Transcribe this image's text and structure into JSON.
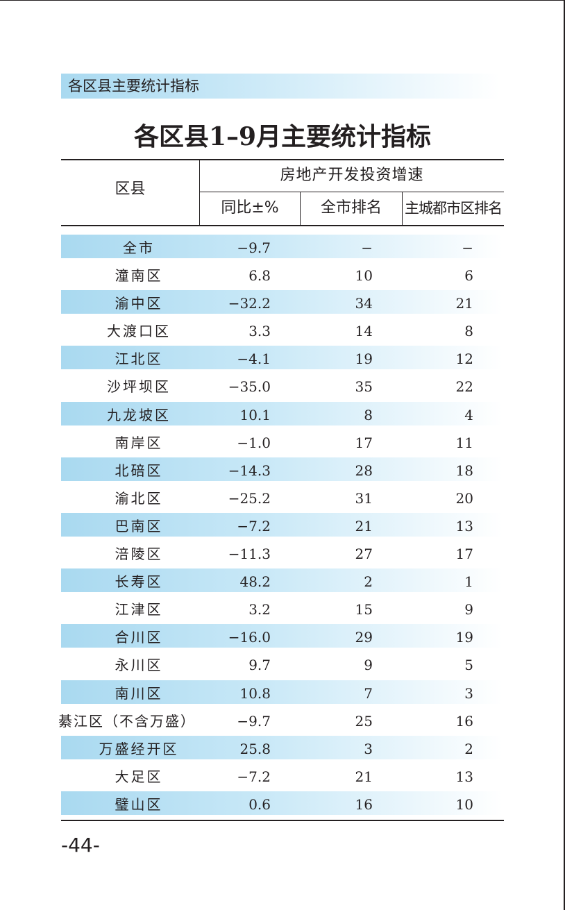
{
  "section": {
    "label": "各区县主要统计指标"
  },
  "title": "各区县1–9月主要统计指标",
  "table": {
    "col_county": "区县",
    "col_group": "房地产开发投资增速",
    "col_yoy": "同比±%",
    "col_city_rank": "全市排名",
    "col_urban_rank": "主城都市区排名",
    "rows": [
      {
        "name": "全市",
        "yoy": "−9.7",
        "city_rank": "−",
        "urban_rank": "−",
        "shaded": true
      },
      {
        "name": "潼南区",
        "yoy": "6.8",
        "city_rank": "10",
        "urban_rank": "6",
        "shaded": false
      },
      {
        "name": "渝中区",
        "yoy": "−32.2",
        "city_rank": "34",
        "urban_rank": "21",
        "shaded": true
      },
      {
        "name": "大渡口区",
        "yoy": "3.3",
        "city_rank": "14",
        "urban_rank": "8",
        "shaded": false
      },
      {
        "name": "江北区",
        "yoy": "−4.1",
        "city_rank": "19",
        "urban_rank": "12",
        "shaded": true
      },
      {
        "name": "沙坪坝区",
        "yoy": "−35.0",
        "city_rank": "35",
        "urban_rank": "22",
        "shaded": false
      },
      {
        "name": "九龙坡区",
        "yoy": "10.1",
        "city_rank": "8",
        "urban_rank": "4",
        "shaded": true
      },
      {
        "name": "南岸区",
        "yoy": "−1.0",
        "city_rank": "17",
        "urban_rank": "11",
        "shaded": false
      },
      {
        "name": "北碚区",
        "yoy": "−14.3",
        "city_rank": "28",
        "urban_rank": "18",
        "shaded": true
      },
      {
        "name": "渝北区",
        "yoy": "−25.2",
        "city_rank": "31",
        "urban_rank": "20",
        "shaded": false
      },
      {
        "name": "巴南区",
        "yoy": "−7.2",
        "city_rank": "21",
        "urban_rank": "13",
        "shaded": true
      },
      {
        "name": "涪陵区",
        "yoy": "−11.3",
        "city_rank": "27",
        "urban_rank": "17",
        "shaded": false
      },
      {
        "name": "长寿区",
        "yoy": "48.2",
        "city_rank": "2",
        "urban_rank": "1",
        "shaded": true
      },
      {
        "name": "江津区",
        "yoy": "3.2",
        "city_rank": "15",
        "urban_rank": "9",
        "shaded": false
      },
      {
        "name": "合川区",
        "yoy": "−16.0",
        "city_rank": "29",
        "urban_rank": "19",
        "shaded": true
      },
      {
        "name": "永川区",
        "yoy": "9.7",
        "city_rank": "9",
        "urban_rank": "5",
        "shaded": false
      },
      {
        "name": "南川区",
        "yoy": "10.8",
        "city_rank": "7",
        "urban_rank": "3",
        "shaded": true
      },
      {
        "name": "綦江区（不含万盛）",
        "yoy": "−9.7",
        "city_rank": "25",
        "urban_rank": "16",
        "shaded": false
      },
      {
        "name": "万盛经开区",
        "yoy": "25.8",
        "city_rank": "3",
        "urban_rank": "2",
        "shaded": true
      },
      {
        "name": "大足区",
        "yoy": "−7.2",
        "city_rank": "21",
        "urban_rank": "13",
        "shaded": false
      },
      {
        "name": "璧山区",
        "yoy": "0.6",
        "city_rank": "16",
        "urban_rank": "10",
        "shaded": true
      }
    ]
  },
  "page_number": "-44-",
  "colors": {
    "band": "#a9d9f0",
    "text": "#231f20"
  }
}
